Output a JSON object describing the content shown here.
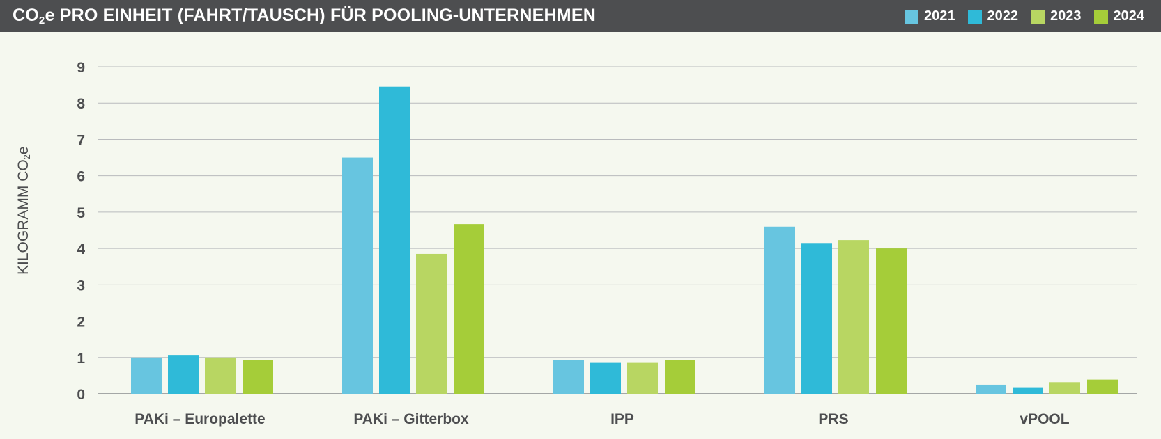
{
  "header": {
    "title_prefix": "CO",
    "title_sub": "2",
    "title_suffix": "e PRO EINHEIT (FAHRT/TAUSCH) FÜR POOLING-UNTERNEHMEN"
  },
  "colors": {
    "header_bg": "#4d4e50",
    "background": "#f5f8ef",
    "series": [
      "#67c5e0",
      "#2fbad8",
      "#b8d662",
      "#a5cd39"
    ]
  },
  "chart_data": {
    "type": "bar",
    "ylabel_prefix": "KILOGRAMM CO",
    "ylabel_sub": "2",
    "ylabel_suffix": "e",
    "ylim": [
      0,
      9
    ],
    "yticks": [
      "0",
      "1",
      "2",
      "3",
      "4",
      "5",
      "6",
      "7",
      "8",
      "9"
    ],
    "grid": true,
    "legend_position": "top-right",
    "categories": [
      "PAKi – Europalette",
      "PAKi – Gitterbox",
      "IPP",
      "PRS",
      "vPOOL"
    ],
    "series": [
      {
        "name": "2021",
        "values": [
          1.0,
          6.5,
          0.92,
          4.6,
          0.25
        ]
      },
      {
        "name": "2022",
        "values": [
          1.07,
          8.45,
          0.85,
          4.15,
          0.18
        ]
      },
      {
        "name": "2023",
        "values": [
          1.0,
          3.85,
          0.85,
          4.23,
          0.32
        ]
      },
      {
        "name": "2024",
        "values": [
          0.92,
          4.67,
          0.92,
          4.0,
          0.39
        ]
      }
    ]
  }
}
